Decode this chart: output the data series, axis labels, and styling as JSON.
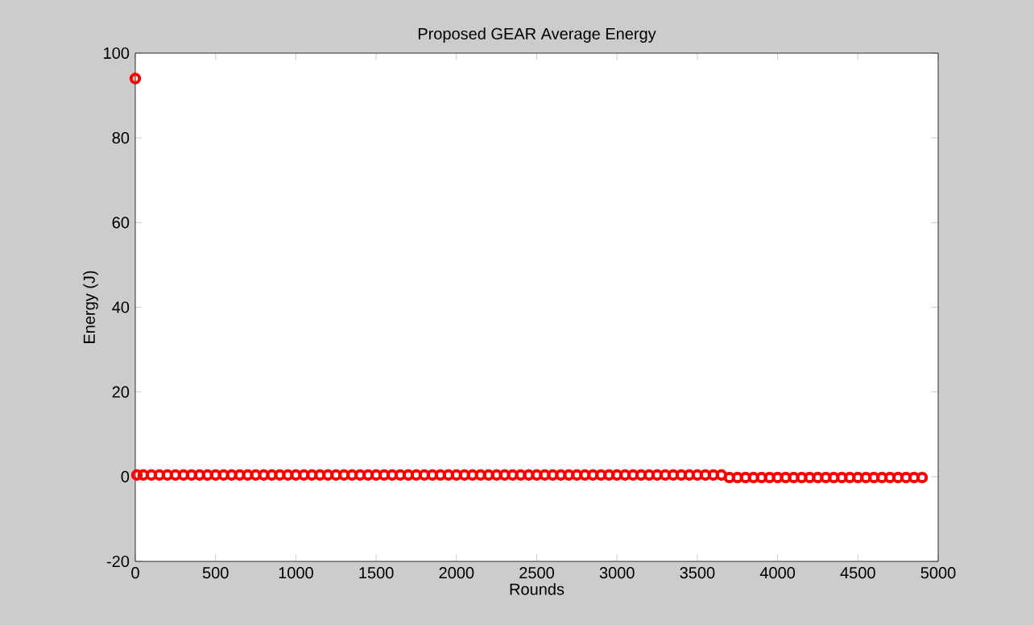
{
  "chart_data": {
    "type": "scatter",
    "title": "Proposed GEAR Average Energy",
    "xlabel": "Rounds",
    "ylabel": "Energy (J)",
    "xlim": [
      0,
      5000
    ],
    "ylim": [
      -20,
      100
    ],
    "xticks": [
      0,
      500,
      1000,
      1500,
      2000,
      2500,
      3000,
      3500,
      4000,
      4500,
      5000
    ],
    "yticks": [
      -20,
      0,
      20,
      40,
      60,
      80,
      100
    ],
    "marker": "circle",
    "grid": false,
    "series": [
      {
        "color": "#ff0000",
        "x": [
          0,
          10,
          50,
          100,
          150,
          200,
          250,
          300,
          350,
          400,
          450,
          500,
          550,
          600,
          650,
          700,
          750,
          800,
          850,
          900,
          950,
          1000,
          1050,
          1100,
          1150,
          1200,
          1250,
          1300,
          1350,
          1400,
          1450,
          1500,
          1550,
          1600,
          1650,
          1700,
          1750,
          1800,
          1850,
          1900,
          1950,
          2000,
          2050,
          2100,
          2150,
          2200,
          2250,
          2300,
          2350,
          2400,
          2450,
          2500,
          2550,
          2600,
          2650,
          2700,
          2750,
          2800,
          2850,
          2900,
          2950,
          3000,
          3050,
          3100,
          3150,
          3200,
          3250,
          3300,
          3350,
          3400,
          3450,
          3500,
          3550,
          3600,
          3650,
          3700,
          3750,
          3800,
          3850,
          3900,
          3950,
          4000,
          4050,
          4100,
          4150,
          4200,
          4250,
          4300,
          4350,
          4400,
          4450,
          4500,
          4550,
          4600,
          4650,
          4700,
          4750,
          4800,
          4850,
          4900
        ],
        "values": [
          94,
          0.4,
          0.4,
          0.4,
          0.4,
          0.4,
          0.4,
          0.4,
          0.4,
          0.4,
          0.4,
          0.4,
          0.4,
          0.4,
          0.4,
          0.4,
          0.4,
          0.4,
          0.4,
          0.4,
          0.4,
          0.4,
          0.4,
          0.4,
          0.4,
          0.4,
          0.4,
          0.4,
          0.4,
          0.4,
          0.4,
          0.4,
          0.4,
          0.4,
          0.4,
          0.4,
          0.4,
          0.4,
          0.4,
          0.4,
          0.4,
          0.4,
          0.4,
          0.4,
          0.4,
          0.4,
          0.4,
          0.4,
          0.4,
          0.4,
          0.4,
          0.4,
          0.4,
          0.4,
          0.4,
          0.4,
          0.4,
          0.4,
          0.4,
          0.4,
          0.4,
          0.4,
          0.4,
          0.4,
          0.4,
          0.4,
          0.4,
          0.4,
          0.4,
          0.4,
          0.4,
          0.4,
          0.4,
          0.4,
          0.4,
          -0.2,
          -0.2,
          -0.2,
          -0.2,
          -0.2,
          -0.2,
          -0.2,
          -0.2,
          -0.2,
          -0.2,
          -0.2,
          -0.2,
          -0.2,
          -0.2,
          -0.2,
          -0.2,
          -0.2,
          -0.2,
          -0.2,
          -0.2,
          -0.2,
          -0.2,
          -0.2,
          -0.2,
          -0.2
        ]
      }
    ]
  }
}
